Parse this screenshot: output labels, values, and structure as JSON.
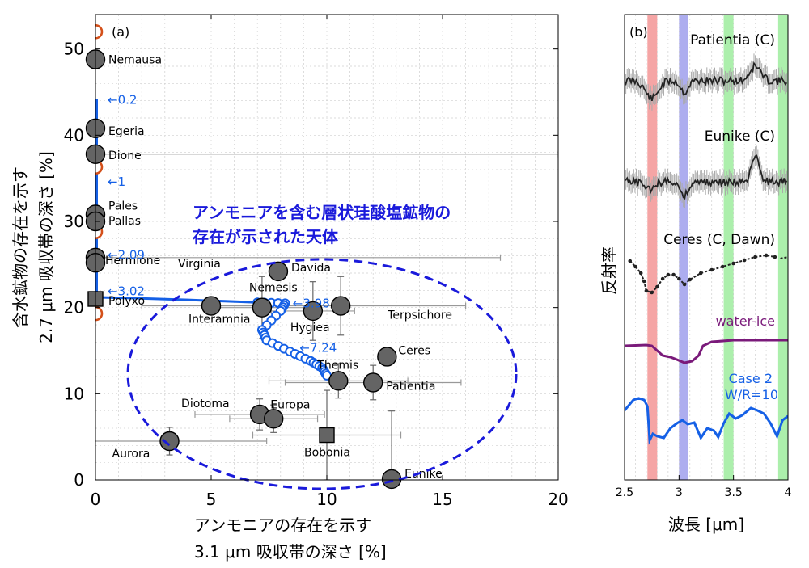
{
  "panel_a": {
    "label": "(a)",
    "xlabel_line1": "アンモニアの存在を示す",
    "xlabel_line2": "3.1 μm 吸収帯の深さ [%]",
    "ylabel_line1": "含水鉱物の存在を示す",
    "ylabel_line2": "2.7 μm 吸収帯の深さ [%]",
    "xticks": [
      "0",
      "5",
      "10",
      "15",
      "20"
    ],
    "yticks": [
      "0",
      "10",
      "20",
      "30",
      "40",
      "50"
    ],
    "annotation_line1": "アンモニアを含む層状珪酸塩鉱物の",
    "annotation_line2": "存在が示された天体"
  },
  "panel_b": {
    "label": "(b)",
    "ylabel": "反射率",
    "xlabel": "波長 [μm]",
    "xticks": [
      "2.5",
      "3",
      "3.5",
      "4"
    ],
    "spectra_labels": [
      "Patientia (C)",
      "Eunike (C)",
      "Ceres (C, Dawn)",
      "water-ice",
      "Case 2",
      "W/R=10"
    ],
    "colors": {
      "band_red": "#f4a0a0",
      "band_blue": "#a9a9ee",
      "band_green": "#a8eea8",
      "water_ice": "#7a1a7a",
      "case2": "#1560e6",
      "spectrum": "#333333"
    }
  },
  "chart_data": [
    {
      "type": "scatter",
      "title": "",
      "xlabel": "アンモニアの存在を示す 3.1 μm 吸収帯の深さ [%]",
      "ylabel": "含水鉱物の存在を示す 2.7 μm 吸収帯の深さ [%]",
      "xlim": [
        0,
        20
      ],
      "ylim": [
        0,
        54
      ],
      "grid": true,
      "asteroids": [
        {
          "name": "Nemausa",
          "x": 0,
          "y": 48.8,
          "xerr": 0,
          "yerr": 0,
          "marker": "circle"
        },
        {
          "name": "Egeria",
          "x": 0,
          "y": 40.8,
          "xerr": 0,
          "yerr": 0,
          "marker": "circle"
        },
        {
          "name": "Dione",
          "x": 0,
          "y": 37.8,
          "xerr": 20,
          "yerr": 0,
          "marker": "circle"
        },
        {
          "name": "Pales",
          "x": 0,
          "y": 30.8,
          "xerr": 0,
          "yerr": 0,
          "marker": "circle"
        },
        {
          "name": "Pallas",
          "x": 0,
          "y": 30.0,
          "xerr": 0,
          "yerr": 0,
          "marker": "circle"
        },
        {
          "name": "Hermione",
          "x": 0,
          "y": 25.8,
          "xerr": 0,
          "yerr": 0,
          "marker": "circle"
        },
        {
          "name": "Hermione",
          "x": 0,
          "y": 25.2,
          "xerr": 0,
          "yerr": 0,
          "marker": "circle"
        },
        {
          "name": "Polyxo",
          "x": 0,
          "y": 21.0,
          "xerr": 0,
          "yerr": 0,
          "marker": "square"
        },
        {
          "name": "Virginia",
          "x": 0,
          "y": 25.8,
          "xerr": 17.5,
          "yerr": 0,
          "marker": "none"
        },
        {
          "name": "Davida",
          "x": 7.9,
          "y": 24.2,
          "xerr": 0,
          "yerr": 0,
          "marker": "circle"
        },
        {
          "name": "Nemesis",
          "x": 7.2,
          "y": 20.0,
          "xerr": 2.5,
          "yerr": 3.6,
          "marker": "circle"
        },
        {
          "name": "Interamnia",
          "x": 5.0,
          "y": 20.2,
          "xerr": 3.0,
          "yerr": 0,
          "marker": "circle"
        },
        {
          "name": "Hygiea",
          "x": 9.4,
          "y": 19.6,
          "xerr": 1.8,
          "yerr": 3.4,
          "marker": "circle"
        },
        {
          "name": "Terpsichore",
          "x": 10.6,
          "y": 20.2,
          "xerr": 5.4,
          "yerr": 3.4,
          "marker": "circle"
        },
        {
          "name": "Ceres",
          "x": 12.6,
          "y": 14.3,
          "xerr": 0,
          "yerr": 0,
          "marker": "circle"
        },
        {
          "name": "Themis",
          "x": 10.5,
          "y": 11.5,
          "xerr": 3.0,
          "yerr": 2.0,
          "marker": "circle"
        },
        {
          "name": "Patientia",
          "x": 12.0,
          "y": 11.3,
          "xerr": 3.8,
          "yerr": 2.0,
          "marker": "circle"
        },
        {
          "name": "Diotoma",
          "x": 7.1,
          "y": 7.6,
          "xerr": 2.8,
          "yerr": 1.8,
          "marker": "circle"
        },
        {
          "name": "Europa",
          "x": 7.7,
          "y": 7.1,
          "xerr": 1.9,
          "yerr": 1.6,
          "marker": "circle"
        },
        {
          "name": "Bobonia",
          "x": 10.0,
          "y": 5.2,
          "xerr": 3.2,
          "yerr": 5.2,
          "marker": "square"
        },
        {
          "name": "Aurora",
          "x": 3.2,
          "y": 4.5,
          "xerr": 4.2,
          "yerr": 1.6,
          "marker": "circle"
        },
        {
          "name": "Eunike",
          "x": 12.8,
          "y": 0.1,
          "xerr": 0,
          "yerr": 7.9,
          "marker": "circle"
        }
      ],
      "red_open_circles": [
        {
          "x": 0,
          "y": 52.0
        },
        {
          "x": 0,
          "y": 36.3
        },
        {
          "x": 0,
          "y": 28.8
        },
        {
          "x": 0,
          "y": 19.3
        }
      ],
      "model_curve_labels": [
        "←0.2",
        "←1",
        "←2.09",
        "←3.02",
        "←3.98",
        "←7.24"
      ],
      "model_curve_label_points": [
        {
          "x": 0,
          "y": 44.2
        },
        {
          "x": 0,
          "y": 34.7
        },
        {
          "x": 0,
          "y": 26.2
        },
        {
          "x": 0,
          "y": 22.0
        },
        {
          "x": 8.0,
          "y": 20.6
        },
        {
          "x": 8.3,
          "y": 15.4
        }
      ]
    },
    {
      "type": "line",
      "title": "",
      "xlabel": "波長 [μm]",
      "ylabel": "反射率",
      "xlim": [
        2.5,
        4.0
      ],
      "bands": [
        {
          "from": 2.71,
          "to": 2.8,
          "color": "red"
        },
        {
          "from": 3.0,
          "to": 3.08,
          "color": "blue"
        },
        {
          "from": 3.41,
          "to": 3.5,
          "color": "green"
        },
        {
          "from": 3.91,
          "to": 4.0,
          "color": "green"
        }
      ],
      "series": [
        {
          "name": "Patientia (C)"
        },
        {
          "name": "Eunike (C)"
        },
        {
          "name": "Ceres (C, Dawn)"
        },
        {
          "name": "water-ice"
        },
        {
          "name": "Case 2 W/R=10"
        }
      ]
    }
  ]
}
